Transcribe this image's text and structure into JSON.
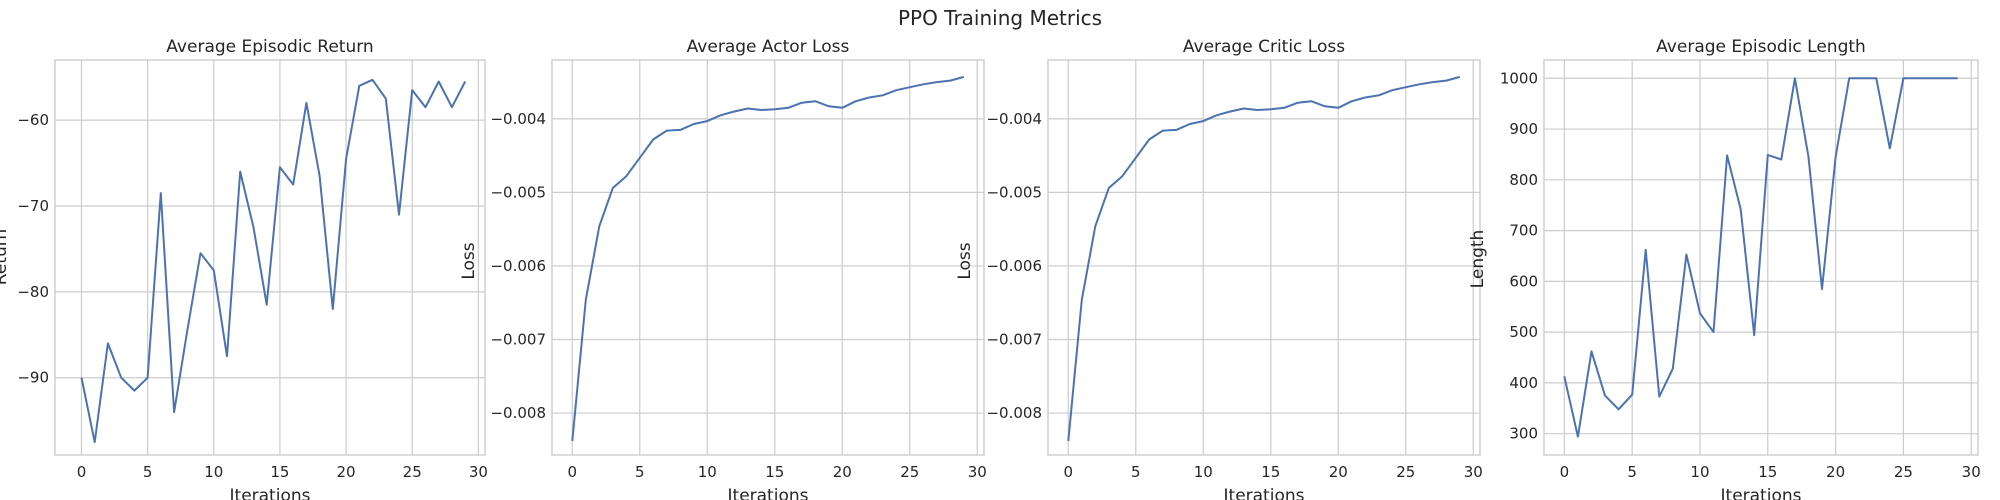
{
  "figure": {
    "suptitle": "PPO Training Metrics"
  },
  "colors": {
    "line": "#4c72b0",
    "grid": "#cccccc",
    "text": "#262626"
  },
  "chart_data": [
    {
      "type": "line",
      "title": "Average Episodic Return",
      "xlabel": "Iterations",
      "ylabel": "Return",
      "xlim": [
        -2,
        30.5
      ],
      "ylim": [
        -99,
        -53
      ],
      "xticks": [
        0,
        5,
        10,
        15,
        20,
        25,
        30
      ],
      "yticks": [
        -90,
        -80,
        -70,
        -60
      ],
      "ytick_labels": [
        "−90",
        "−80",
        "−70",
        "−60"
      ],
      "grid": true,
      "x": [
        0,
        1,
        2,
        3,
        4,
        5,
        6,
        7,
        8,
        9,
        10,
        11,
        12,
        13,
        14,
        15,
        16,
        17,
        18,
        19,
        20,
        21,
        22,
        23,
        24,
        25,
        26,
        27,
        28,
        29
      ],
      "values": [
        -90,
        -97.5,
        -86,
        -90,
        -91.5,
        -90,
        -68.5,
        -94,
        -84.5,
        -75.5,
        -77.5,
        -87.5,
        -66,
        -72.5,
        -81.5,
        -65.5,
        -67.5,
        -58,
        -66.5,
        -82,
        -64.5,
        -56,
        -55.3,
        -57.5,
        -71,
        -56.5,
        -58.5,
        -55.5,
        -58.5,
        -55.5
      ]
    },
    {
      "type": "line",
      "title": "Average Actor Loss",
      "xlabel": "Iterations",
      "ylabel": "Loss",
      "xlim": [
        -1.5,
        30.5
      ],
      "ylim": [
        -0.00857,
        -0.0032
      ],
      "xticks": [
        0,
        5,
        10,
        15,
        20,
        25,
        30
      ],
      "yticks": [
        -0.008,
        -0.007,
        -0.006,
        -0.005,
        -0.004
      ],
      "ytick_labels": [
        "−0.008",
        "−0.007",
        "−0.006",
        "−0.005",
        "−0.004"
      ],
      "grid": true,
      "x": [
        0,
        1,
        2,
        3,
        4,
        5,
        6,
        7,
        8,
        9,
        10,
        11,
        12,
        13,
        14,
        15,
        16,
        17,
        18,
        19,
        20,
        21,
        22,
        23,
        24,
        25,
        26,
        27,
        28,
        29
      ],
      "values": [
        -0.00838,
        -0.00646,
        -0.00546,
        -0.00494,
        -0.00478,
        -0.00453,
        -0.00428,
        -0.00416,
        -0.00415,
        -0.00407,
        -0.00403,
        -0.00395,
        -0.0039,
        -0.00386,
        -0.00388,
        -0.00387,
        -0.00385,
        -0.00378,
        -0.00376,
        -0.00383,
        -0.00385,
        -0.00376,
        -0.00371,
        -0.00368,
        -0.00361,
        -0.00357,
        -0.00353,
        -0.0035,
        -0.00348,
        -0.00343
      ]
    },
    {
      "type": "line",
      "title": "Average Critic Loss",
      "xlabel": "Iterations",
      "ylabel": "Loss",
      "xlim": [
        -1.5,
        30.5
      ],
      "ylim": [
        -0.00857,
        -0.0032
      ],
      "xticks": [
        0,
        5,
        10,
        15,
        20,
        25,
        30
      ],
      "yticks": [
        -0.008,
        -0.007,
        -0.006,
        -0.005,
        -0.004
      ],
      "ytick_labels": [
        "−0.008",
        "−0.007",
        "−0.006",
        "−0.005",
        "−0.004"
      ],
      "grid": true,
      "x": [
        0,
        1,
        2,
        3,
        4,
        5,
        6,
        7,
        8,
        9,
        10,
        11,
        12,
        13,
        14,
        15,
        16,
        17,
        18,
        19,
        20,
        21,
        22,
        23,
        24,
        25,
        26,
        27,
        28,
        29
      ],
      "values": [
        -0.00838,
        -0.00646,
        -0.00546,
        -0.00494,
        -0.00478,
        -0.00453,
        -0.00428,
        -0.00416,
        -0.00415,
        -0.00407,
        -0.00403,
        -0.00395,
        -0.0039,
        -0.00386,
        -0.00388,
        -0.00387,
        -0.00385,
        -0.00378,
        -0.00376,
        -0.00383,
        -0.00385,
        -0.00376,
        -0.00371,
        -0.00368,
        -0.00361,
        -0.00357,
        -0.00353,
        -0.0035,
        -0.00348,
        -0.00343
      ]
    },
    {
      "type": "line",
      "title": "Average Episodic Length",
      "xlabel": "Iterations",
      "ylabel": "Length",
      "xlim": [
        -1.5,
        30.5
      ],
      "ylim": [
        258,
        1036
      ],
      "xticks": [
        0,
        5,
        10,
        15,
        20,
        25,
        30
      ],
      "yticks": [
        300,
        400,
        500,
        600,
        700,
        800,
        900,
        1000
      ],
      "ytick_labels": [
        "300",
        "400",
        "500",
        "600",
        "700",
        "800",
        "900",
        "1000"
      ],
      "grid": true,
      "x": [
        0,
        1,
        2,
        3,
        4,
        5,
        6,
        7,
        8,
        9,
        10,
        11,
        12,
        13,
        14,
        15,
        16,
        17,
        18,
        19,
        20,
        21,
        22,
        23,
        24,
        25,
        26,
        27,
        28,
        29
      ],
      "values": [
        413,
        294,
        462,
        375,
        348,
        377,
        662,
        373,
        428,
        653,
        537,
        500,
        848,
        742,
        494,
        849,
        840,
        1000,
        845,
        585,
        845,
        1000,
        1000,
        1000,
        862,
        1000,
        1000,
        1000,
        1000,
        1000
      ]
    }
  ]
}
